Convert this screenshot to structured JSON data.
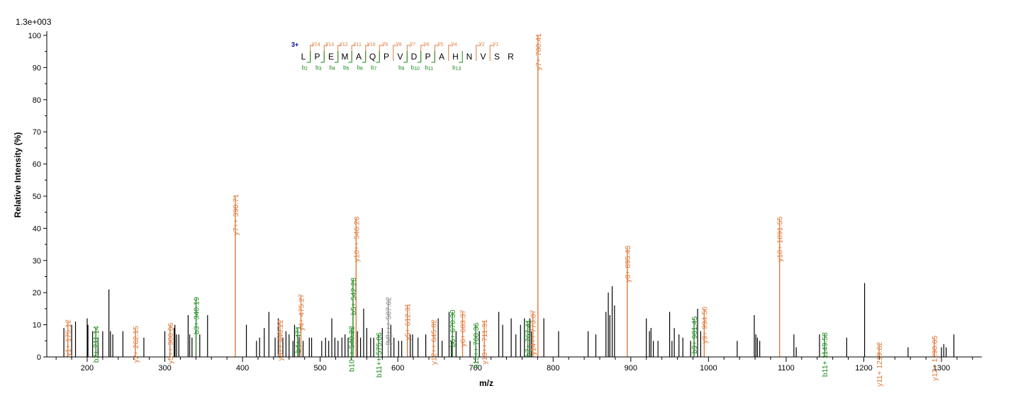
{
  "chart_data": {
    "type": "bar",
    "title": "",
    "scale_label": "1.3e+003",
    "xlabel": "m/z",
    "ylabel": "Relative   Intensity (%)",
    "xlim": [
      148,
      1352
    ],
    "ylim": [
      0,
      100
    ],
    "xticks": [
      200,
      300,
      400,
      500,
      600,
      700,
      800,
      900,
      1000,
      1100,
      1200,
      1300
    ],
    "yticks": [
      0,
      10,
      20,
      30,
      40,
      50,
      60,
      70,
      80,
      90,
      100
    ],
    "colors": {
      "y_ion": "#E07A3C",
      "b_ion": "#1F8A1F",
      "other_ion": "#8A8A8A",
      "unmatched": "#000000",
      "charge": "#00009C"
    },
    "annotated_peaks": [
      {
        "mz": 175.12,
        "intensity": 11,
        "label": "y1+ 175.12",
        "ion": "y"
      },
      {
        "mz": 211.14,
        "intensity": 9,
        "label": "b2+ 211.14",
        "ion": "b"
      },
      {
        "mz": 262.15,
        "intensity": 9,
        "label": "y2+ 262.15",
        "ion": "y"
      },
      {
        "mz": 306.66,
        "intensity": 10,
        "label": "y5++ 306.66",
        "ion": "y"
      },
      {
        "mz": 340.19,
        "intensity": 18,
        "label": "b3+ 340.19",
        "ion": "b"
      },
      {
        "mz": 390.71,
        "intensity": 50,
        "label": "y7++ 390.71",
        "ion": "y"
      },
      {
        "mz": 448.22,
        "intensity": 11,
        "label": "y8++ 448.22",
        "ion": "y"
      },
      {
        "mz": 471.0,
        "intensity": 9,
        "label": "b4+ 471",
        "ion": "b"
      },
      {
        "mz": 475.27,
        "intensity": 19,
        "label": "y4+ 475.27",
        "ion": "y"
      },
      {
        "mz": 540.22,
        "intensity": 9,
        "label": "b10++ 540.22",
        "ion": "b"
      },
      {
        "mz": 542.28,
        "intensity": 24,
        "label": "b5+ 542.28",
        "ion": "b"
      },
      {
        "mz": 546.28,
        "intensity": 43,
        "label": "y10++ 546.28",
        "ion": "y"
      },
      {
        "mz": 575.06,
        "intensity": 7,
        "label": "b11++ 575.06",
        "ion": "b"
      },
      {
        "mz": 587.62,
        "intensity": 18,
        "label": "[M]+++ 587.62",
        "ion": "other"
      },
      {
        "mz": 612.31,
        "intensity": 16,
        "label": "y5+ 612.31",
        "ion": "y"
      },
      {
        "mz": 645.82,
        "intensity": 11,
        "label": "y12++ 645.82",
        "ion": "y"
      },
      {
        "mz": 670.3,
        "intensity": 14,
        "label": "b6+ 670.30",
        "ion": "b"
      },
      {
        "mz": 683.37,
        "intensity": 14,
        "label": "y6+ 683.37",
        "ion": "y"
      },
      {
        "mz": 700.36,
        "intensity": 10,
        "label": "b13++ 700.36",
        "ion": "b"
      },
      {
        "mz": 711.31,
        "intensity": 11,
        "label": "y13++ 711.31",
        "ion": "y"
      },
      {
        "mz": 767.41,
        "intensity": 11,
        "label": "b7+ 767.41",
        "ion": "b"
      },
      {
        "mz": 773.87,
        "intensity": 14,
        "label": "y14++ 773.87",
        "ion": "y"
      },
      {
        "mz": 780.41,
        "intensity": 100,
        "label": "y7+ 780.41",
        "ion": "y"
      },
      {
        "mz": 895.43,
        "intensity": 34,
        "label": "y8+ 895.43",
        "ion": "y"
      },
      {
        "mz": 981.45,
        "intensity": 12,
        "label": "b9+ 981.45",
        "ion": "b"
      },
      {
        "mz": 994.5,
        "intensity": 15,
        "label": "y9+ 994.50",
        "ion": "y"
      },
      {
        "mz": 1091.55,
        "intensity": 43,
        "label": "y10+ 1091.55",
        "ion": "y"
      },
      {
        "mz": 1149.58,
        "intensity": 7,
        "label": "b11+ 1149.58",
        "ion": "b"
      },
      {
        "mz": 1219.62,
        "intensity": 4,
        "label": "y11+ 1219.62",
        "ion": "y"
      },
      {
        "mz": 1290.65,
        "intensity": 6,
        "label": "y12+ 1290.65",
        "ion": "y"
      }
    ],
    "unannotated_peaks": [
      [
        170,
        9
      ],
      [
        180,
        10
      ],
      [
        185,
        11
      ],
      [
        200,
        12
      ],
      [
        201,
        10
      ],
      [
        207,
        8
      ],
      [
        214,
        6
      ],
      [
        220,
        8
      ],
      [
        228,
        21
      ],
      [
        230,
        8
      ],
      [
        233,
        7
      ],
      [
        246,
        8
      ],
      [
        273,
        6
      ],
      [
        300,
        8
      ],
      [
        312,
        9
      ],
      [
        313,
        10
      ],
      [
        315,
        7
      ],
      [
        318,
        7
      ],
      [
        330,
        13
      ],
      [
        332,
        7
      ],
      [
        335,
        6
      ],
      [
        345,
        7
      ],
      [
        355,
        13
      ],
      [
        405,
        10
      ],
      [
        418,
        5
      ],
      [
        422,
        6
      ],
      [
        428,
        9
      ],
      [
        434,
        14
      ],
      [
        442,
        6
      ],
      [
        446,
        12
      ],
      [
        452,
        6
      ],
      [
        456,
        8
      ],
      [
        460,
        7
      ],
      [
        465,
        5
      ],
      [
        467,
        10
      ],
      [
        473,
        6
      ],
      [
        478,
        5
      ],
      [
        486,
        6
      ],
      [
        489,
        6
      ],
      [
        502,
        5
      ],
      [
        507,
        6
      ],
      [
        511,
        5
      ],
      [
        515,
        12
      ],
      [
        519,
        6
      ],
      [
        523,
        5
      ],
      [
        528,
        6
      ],
      [
        532,
        7
      ],
      [
        536,
        6
      ],
      [
        548,
        8
      ],
      [
        552,
        6
      ],
      [
        556,
        15
      ],
      [
        560,
        9
      ],
      [
        565,
        6
      ],
      [
        569,
        6
      ],
      [
        580,
        9
      ],
      [
        591,
        10
      ],
      [
        595,
        6
      ],
      [
        601,
        5
      ],
      [
        605,
        5
      ],
      [
        616,
        7
      ],
      [
        619,
        7
      ],
      [
        626,
        6
      ],
      [
        636,
        7
      ],
      [
        652,
        12
      ],
      [
        657,
        5
      ],
      [
        666,
        14
      ],
      [
        669,
        5
      ],
      [
        675,
        8
      ],
      [
        693,
        5
      ],
      [
        705,
        8
      ],
      [
        730,
        14
      ],
      [
        735,
        10
      ],
      [
        746,
        12
      ],
      [
        752,
        7
      ],
      [
        758,
        10
      ],
      [
        763,
        12
      ],
      [
        770,
        12
      ],
      [
        772,
        8
      ],
      [
        788,
        12
      ],
      [
        807,
        8
      ],
      [
        845,
        8
      ],
      [
        855,
        7
      ],
      [
        868,
        14
      ],
      [
        871,
        20
      ],
      [
        873,
        13
      ],
      [
        876,
        22
      ],
      [
        879,
        16
      ],
      [
        920,
        12
      ],
      [
        924,
        8
      ],
      [
        926,
        9
      ],
      [
        929,
        5
      ],
      [
        935,
        5
      ],
      [
        950,
        14
      ],
      [
        953,
        5
      ],
      [
        956,
        9
      ],
      [
        962,
        7
      ],
      [
        967,
        6
      ],
      [
        977,
        5
      ],
      [
        986,
        15
      ],
      [
        990,
        8
      ],
      [
        1037,
        5
      ],
      [
        1059,
        13
      ],
      [
        1061,
        7
      ],
      [
        1063,
        6
      ],
      [
        1066,
        5
      ],
      [
        1110,
        7
      ],
      [
        1113,
        3
      ],
      [
        1143,
        7
      ],
      [
        1178,
        6
      ],
      [
        1201,
        23
      ],
      [
        1257,
        3
      ],
      [
        1300,
        3
      ],
      [
        1303,
        4
      ],
      [
        1306,
        3
      ],
      [
        1316,
        7
      ]
    ],
    "sequence": {
      "charge": "3+",
      "residues": [
        "L",
        "P",
        "E",
        "M",
        "A",
        "Q",
        "P",
        "V",
        "D",
        "P",
        "A",
        "H",
        "N",
        "V",
        "S",
        "R"
      ],
      "y_ions": [
        {
          "after": 1,
          "label": "y",
          "n": "14"
        },
        {
          "after": 2,
          "label": "y",
          "n": "13"
        },
        {
          "after": 3,
          "label": "y",
          "n": "12"
        },
        {
          "after": 4,
          "label": "y",
          "n": "11"
        },
        {
          "after": 5,
          "label": "y",
          "n": "10"
        },
        {
          "after": 6,
          "label": "y",
          "n": "9"
        },
        {
          "after": 7,
          "label": "y",
          "n": "8"
        },
        {
          "after": 8,
          "label": "y",
          "n": "7"
        },
        {
          "after": 9,
          "label": "y",
          "n": "6"
        },
        {
          "after": 10,
          "label": "y",
          "n": "5"
        },
        {
          "after": 11,
          "label": "y",
          "n": "4"
        },
        {
          "after": 13,
          "label": "y",
          "n": "2"
        },
        {
          "after": 14,
          "label": "y",
          "n": "1"
        }
      ],
      "b_ions": [
        {
          "after": 1,
          "label": "b",
          "n": "2"
        },
        {
          "after": 2,
          "label": "b",
          "n": "3"
        },
        {
          "after": 3,
          "label": "b",
          "n": "4"
        },
        {
          "after": 4,
          "label": "b",
          "n": "5"
        },
        {
          "after": 5,
          "label": "b",
          "n": "6"
        },
        {
          "after": 6,
          "label": "b",
          "n": "7"
        },
        {
          "after": 8,
          "label": "b",
          "n": "9"
        },
        {
          "after": 9,
          "label": "b",
          "n": "10"
        },
        {
          "after": 10,
          "label": "b",
          "n": "11"
        },
        {
          "after": 12,
          "label": "b",
          "n": "13"
        }
      ]
    }
  }
}
